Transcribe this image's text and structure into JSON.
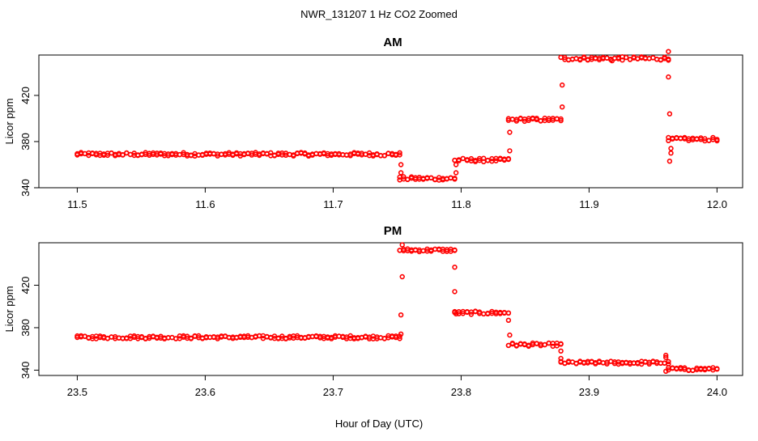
{
  "chart_data": [
    {
      "type": "scatter",
      "figure_title": "NWR_131207  1 Hz CO2 Zoomed",
      "title": "AM",
      "xlabel": "",
      "ylabel": "Licor ppm",
      "xlim": [
        11.47,
        12.02
      ],
      "ylim": [
        340,
        455
      ],
      "xticks": [
        11.5,
        11.6,
        11.7,
        11.8,
        11.9,
        12.0
      ],
      "xtick_labels": [
        "11.5",
        "11.6",
        "11.7",
        "11.8",
        "11.9",
        "12.0"
      ],
      "yticks": [
        340,
        380,
        420
      ],
      "ytick_labels": [
        "340",
        "380",
        "420"
      ],
      "marker_color": "#ff0000",
      "segments": [
        {
          "x_start": 11.5,
          "x_end": 11.752,
          "y": 369
        },
        {
          "x_start": 11.752,
          "x_end": 11.795,
          "y": 348
        },
        {
          "x_start": 11.795,
          "x_end": 11.837,
          "y": 364
        },
        {
          "x_start": 11.837,
          "x_end": 11.878,
          "y": 399
        },
        {
          "x_start": 11.878,
          "x_end": 11.962,
          "y": 452
        },
        {
          "x_start": 11.962,
          "x_end": 12.0,
          "y": 382
        }
      ],
      "transition_points": [
        {
          "x": 11.753,
          "y": 360
        },
        {
          "x": 11.753,
          "y": 353
        },
        {
          "x": 11.796,
          "y": 360
        },
        {
          "x": 11.796,
          "y": 353
        },
        {
          "x": 11.838,
          "y": 388
        },
        {
          "x": 11.838,
          "y": 372
        },
        {
          "x": 11.879,
          "y": 429
        },
        {
          "x": 11.879,
          "y": 410
        },
        {
          "x": 11.918,
          "y": 450
        },
        {
          "x": 11.962,
          "y": 458
        },
        {
          "x": 11.962,
          "y": 436
        },
        {
          "x": 11.963,
          "y": 404
        },
        {
          "x": 11.964,
          "y": 374
        },
        {
          "x": 11.964,
          "y": 370
        },
        {
          "x": 11.963,
          "y": 363
        }
      ]
    },
    {
      "type": "scatter",
      "title": "PM",
      "xlabel": "Hour of Day (UTC)",
      "ylabel": "Licor ppm",
      "xlim": [
        23.47,
        24.02
      ],
      "ylim": [
        335,
        460
      ],
      "xticks": [
        23.5,
        23.6,
        23.7,
        23.8,
        23.9,
        24.0
      ],
      "xtick_labels": [
        "23.5",
        "23.6",
        "23.7",
        "23.8",
        "23.9",
        "24.0"
      ],
      "yticks": [
        340,
        380,
        420
      ],
      "ytick_labels": [
        "340",
        "380",
        "420"
      ],
      "marker_color": "#ff0000",
      "segments": [
        {
          "x_start": 23.5,
          "x_end": 23.752,
          "y": 371
        },
        {
          "x_start": 23.752,
          "x_end": 23.795,
          "y": 453
        },
        {
          "x_start": 23.795,
          "x_end": 23.837,
          "y": 394
        },
        {
          "x_start": 23.837,
          "x_end": 23.878,
          "y": 364
        },
        {
          "x_start": 23.878,
          "x_end": 23.962,
          "y": 347
        },
        {
          "x_start": 23.962,
          "x_end": 24.0,
          "y": 341
        }
      ],
      "transition_points": [
        {
          "x": 23.753,
          "y": 374
        },
        {
          "x": 23.753,
          "y": 392
        },
        {
          "x": 23.754,
          "y": 428
        },
        {
          "x": 23.754,
          "y": 458
        },
        {
          "x": 23.795,
          "y": 437
        },
        {
          "x": 23.795,
          "y": 414
        },
        {
          "x": 23.796,
          "y": 393
        },
        {
          "x": 23.837,
          "y": 387
        },
        {
          "x": 23.838,
          "y": 373
        },
        {
          "x": 23.878,
          "y": 358
        },
        {
          "x": 23.878,
          "y": 351
        },
        {
          "x": 23.96,
          "y": 354
        },
        {
          "x": 23.96,
          "y": 352
        },
        {
          "x": 23.96,
          "y": 339
        },
        {
          "x": 23.962,
          "y": 348
        }
      ]
    }
  ]
}
